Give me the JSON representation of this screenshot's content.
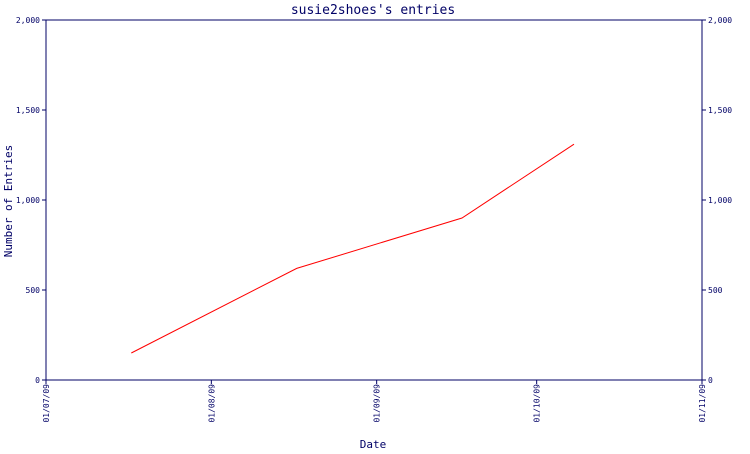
{
  "chart_data": {
    "type": "line",
    "title": "susie2shoes's entries",
    "xlabel": "Date",
    "ylabel": "Number of Entries",
    "ylim": [
      0,
      2000
    ],
    "y_ticks": [
      0,
      500,
      1000,
      1500,
      2000
    ],
    "y_tick_labels": [
      "0",
      "500",
      "1,000",
      "1,500",
      "2,000"
    ],
    "x_range": [
      "2009-07-01",
      "2009-11-01"
    ],
    "x_ticks": [
      "2009-07-01",
      "2009-08-01",
      "2009-09-01",
      "2009-10-01",
      "2009-11-01"
    ],
    "x_tick_labels": [
      "01/07/09",
      "01/08/09",
      "01/09/09",
      "01/10/09",
      "01/11/09"
    ],
    "grid": false,
    "series": [
      {
        "color": "#ff0000",
        "points": [
          {
            "x": "2009-07-17",
            "y": 150
          },
          {
            "x": "2009-08-17",
            "y": 620
          },
          {
            "x": "2009-09-17",
            "y": 900
          },
          {
            "x": "2009-10-08",
            "y": 1310
          }
        ]
      }
    ]
  },
  "colors": {
    "axis": "#000066",
    "text": "#000066",
    "line": "#ff0000"
  }
}
